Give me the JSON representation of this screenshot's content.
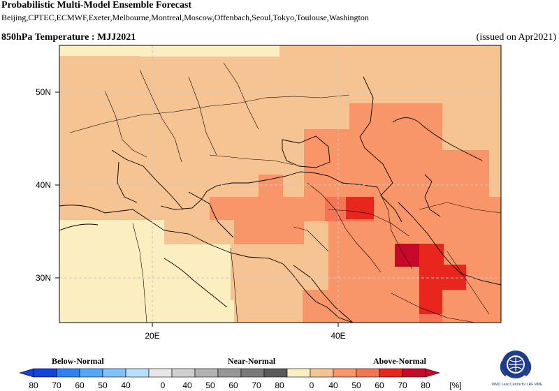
{
  "header": {
    "title": "Probabilistic Multi-Model Ensemble Forecast",
    "centres": "Beijing,CPTEC,ECMWF,Exeter,Melbourne,Montreal,Moscow,Offenbach,Seoul,Tokyo,Toulouse,Washington",
    "variable": "850hPa Temperature : MJJ2021",
    "issued": "(issued on Apr2021)"
  },
  "map": {
    "lat_labels": [
      "50N",
      "40N",
      "30N"
    ],
    "lon_labels": [
      "20E",
      "40E"
    ],
    "colors": {
      "land_base": "#f6c393",
      "light": "#fbeec0",
      "c50": "#f6c393",
      "c60": "#f8966a",
      "c70": "#f57456",
      "c80": "#e8261e",
      "c90": "#c8082a"
    }
  },
  "legend": {
    "below_label": "Below-Normal",
    "near_label": "Near-Normal",
    "above_label": "Above-Normal",
    "ticks": [
      "80",
      "70",
      "60",
      "50",
      "40",
      "0",
      "40",
      "50",
      "60",
      "70",
      "80",
      "0",
      "40",
      "50",
      "60",
      "70",
      "80"
    ],
    "unit": "[%]",
    "below_colors": [
      "#1440e0",
      "#2d82f2",
      "#54a6f6",
      "#82c2f8",
      "#b6e0fa"
    ],
    "near_colors": [
      "#e8e8e8",
      "#cfcfcf",
      "#b2b2b2",
      "#979797",
      "#7a7a7a",
      "#5a5a5a"
    ],
    "above_colors": [
      "#fbeec0",
      "#f6c393",
      "#f8966a",
      "#f57456",
      "#e8261e",
      "#c8082a"
    ]
  },
  "logo": {
    "icon": "wmo-emblem-icon",
    "text": "WMO Lead Centre for LRF MME"
  }
}
